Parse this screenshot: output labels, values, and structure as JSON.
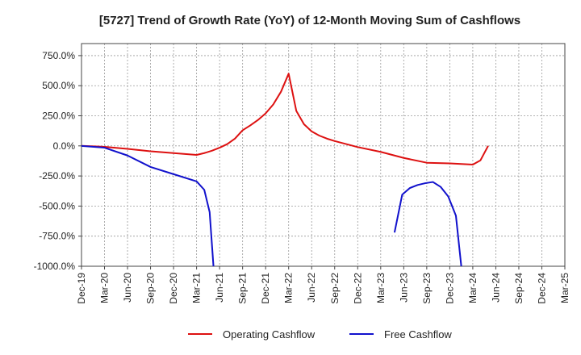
{
  "chart_data": {
    "type": "line",
    "title": "[5727]  Trend of Growth Rate (YoY) of 12-Month Moving Sum of Cashflows",
    "xlabel": "",
    "ylabel": "",
    "x_ticks": [
      "Dec-19",
      "Mar-20",
      "Jun-20",
      "Sep-20",
      "Dec-20",
      "Mar-21",
      "Jun-21",
      "Sep-21",
      "Dec-21",
      "Mar-22",
      "Jun-22",
      "Sep-22",
      "Dec-22",
      "Mar-23",
      "Jun-23",
      "Sep-23",
      "Dec-23",
      "Mar-24",
      "Jun-24",
      "Sep-24",
      "Dec-24",
      "Mar-25"
    ],
    "y_ticks": [
      "750.0%",
      "500.0%",
      "250.0%",
      "0.0%",
      "-250.0%",
      "-500.0%",
      "-750.0%",
      "-1000.0%"
    ],
    "y_tick_values": [
      750,
      500,
      250,
      0,
      -250,
      -500,
      -750,
      -1000
    ],
    "ylim": [
      -1000,
      850
    ],
    "xlim_months": [
      0,
      63
    ],
    "grid": true,
    "legend_position": "bottom-center",
    "series": [
      {
        "name": "Operating Cashflow",
        "color": "#dd1111",
        "points": [
          [
            0,
            0
          ],
          [
            3,
            -8
          ],
          [
            6,
            -25
          ],
          [
            9,
            -45
          ],
          [
            12,
            -60
          ],
          [
            15,
            -75
          ],
          [
            16,
            -60
          ],
          [
            17,
            -40
          ],
          [
            18,
            -15
          ],
          [
            19,
            15
          ],
          [
            20,
            60
          ],
          [
            21,
            130
          ],
          [
            22,
            170
          ],
          [
            23,
            215
          ],
          [
            24,
            270
          ],
          [
            25,
            345
          ],
          [
            26,
            450
          ],
          [
            27,
            600
          ],
          [
            28,
            290
          ],
          [
            29,
            180
          ],
          [
            30,
            120
          ],
          [
            31,
            85
          ],
          [
            32,
            60
          ],
          [
            33,
            40
          ],
          [
            36,
            -10
          ],
          [
            39,
            -50
          ],
          [
            42,
            -100
          ],
          [
            45,
            -140
          ],
          [
            48,
            -145
          ],
          [
            51,
            -155
          ],
          [
            52,
            -120
          ],
          [
            53,
            0
          ]
        ]
      },
      {
        "name": "Free Cashflow",
        "color": "#1111cc",
        "segments": [
          [
            [
              0,
              0
            ],
            [
              3,
              -15
            ],
            [
              6,
              -80
            ],
            [
              9,
              -175
            ],
            [
              12,
              -235
            ],
            [
              15,
              -295
            ],
            [
              16,
              -365
            ],
            [
              16.7,
              -550
            ],
            [
              17.2,
              -1000
            ]
          ],
          [
            [
              40.8,
              -720
            ],
            [
              41.8,
              -405
            ],
            [
              42.8,
              -350
            ],
            [
              43.8,
              -325
            ],
            [
              44.8,
              -310
            ],
            [
              45.8,
              -300
            ],
            [
              46.8,
              -340
            ],
            [
              47.8,
              -420
            ],
            [
              48.8,
              -580
            ],
            [
              49.5,
              -1000
            ]
          ]
        ]
      }
    ]
  }
}
